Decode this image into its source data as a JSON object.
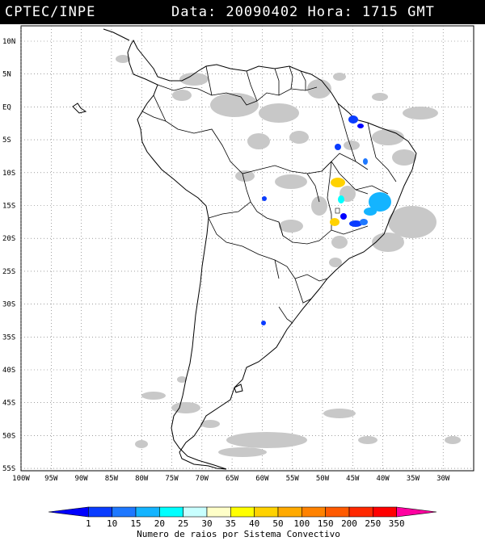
{
  "header": {
    "source": "CPTEC/INPE",
    "datetime": "Data: 20090402 Hora: 1715 GMT"
  },
  "map": {
    "lat_labels": [
      "10N",
      "5N",
      "EQ",
      "5S",
      "10S",
      "15S",
      "20S",
      "25S",
      "30S",
      "35S",
      "40S",
      "45S",
      "50S",
      "55S"
    ],
    "lon_labels": [
      "100W",
      "95W",
      "90W",
      "85W",
      "80W",
      "75W",
      "70W",
      "65W",
      "60W",
      "55W",
      "50W",
      "45W",
      "40W",
      "35W",
      "30W"
    ]
  },
  "legend": {
    "values": [
      "1",
      "10",
      "15",
      "20",
      "25",
      "30",
      "35",
      "40",
      "50",
      "100",
      "150",
      "200",
      "250",
      "350"
    ],
    "colors": [
      "#0000ff",
      "#0a3cff",
      "#1e78ff",
      "#14b4ff",
      "#00ffff",
      "#c8ffff",
      "#ffffc8",
      "#ffff00",
      "#ffd200",
      "#ffaa00",
      "#ff8200",
      "#ff5a00",
      "#ff2800",
      "#ff0000",
      "#ff00a0"
    ],
    "title": "Numero de raios por Sistema Convectivo"
  }
}
